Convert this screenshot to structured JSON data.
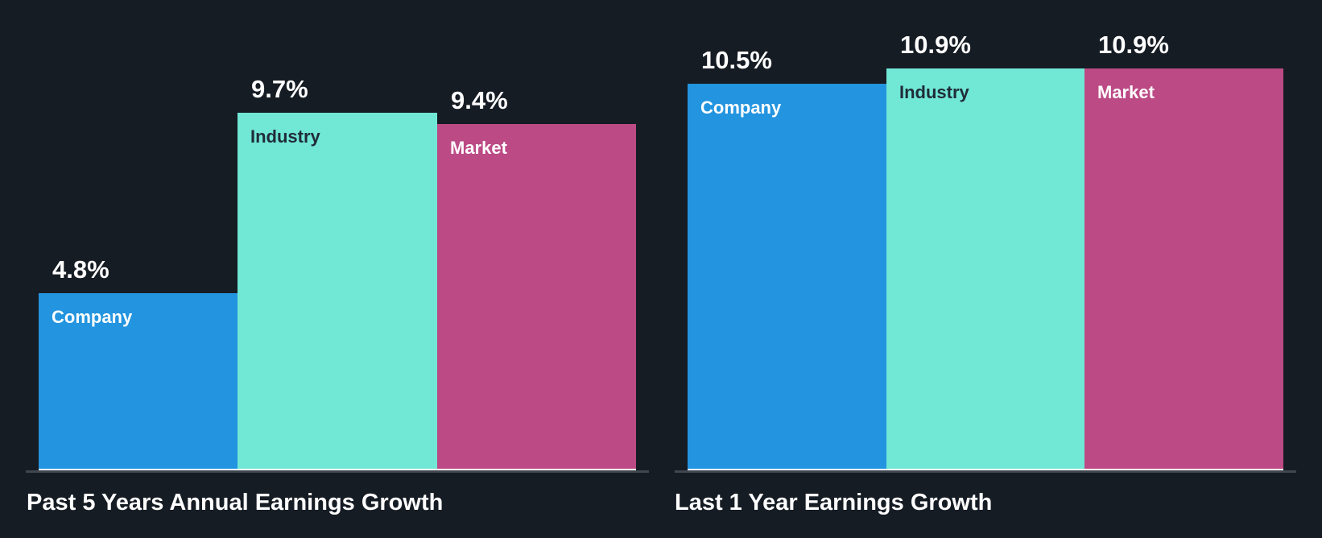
{
  "colors": {
    "background": "#161c24",
    "company": "#2394df",
    "industry": "#71e7d6",
    "market": "#bb4a85",
    "axis": "#414751",
    "label_light": "#ffffff",
    "label_dark": "#1f2c37"
  },
  "chart_data": [
    {
      "type": "bar",
      "title": "Past 5 Years Annual Earnings Growth",
      "categories": [
        "Company",
        "Industry",
        "Market"
      ],
      "values": [
        4.8,
        9.7,
        9.4
      ],
      "value_labels": [
        "4.8%",
        "9.7%",
        "9.4%"
      ],
      "unit": "%",
      "xlabel": "",
      "ylabel": "",
      "ylim": [
        0,
        12
      ],
      "grid": false,
      "legend": "none (labels inside bars)"
    },
    {
      "type": "bar",
      "title": "Last 1 Year Earnings Growth",
      "categories": [
        "Company",
        "Industry",
        "Market"
      ],
      "values": [
        10.5,
        10.9,
        10.9
      ],
      "value_labels": [
        "10.5%",
        "10.9%",
        "10.9%"
      ],
      "unit": "%",
      "xlabel": "",
      "ylabel": "",
      "ylim": [
        0,
        12
      ],
      "grid": false,
      "legend": "none (labels inside bars)"
    }
  ],
  "charts": [
    {
      "title": "Past 5 Years Annual Earnings Growth",
      "bars": [
        {
          "label": "Company",
          "value": 4.8,
          "value_text": "4.8%"
        },
        {
          "label": "Industry",
          "value": 9.7,
          "value_text": "9.7%"
        },
        {
          "label": "Market",
          "value": 9.4,
          "value_text": "9.4%"
        }
      ]
    },
    {
      "title": "Last 1 Year Earnings Growth",
      "bars": [
        {
          "label": "Company",
          "value": 10.5,
          "value_text": "10.5%"
        },
        {
          "label": "Industry",
          "value": 10.9,
          "value_text": "10.9%"
        },
        {
          "label": "Market",
          "value": 10.9,
          "value_text": "10.9%"
        }
      ]
    }
  ]
}
